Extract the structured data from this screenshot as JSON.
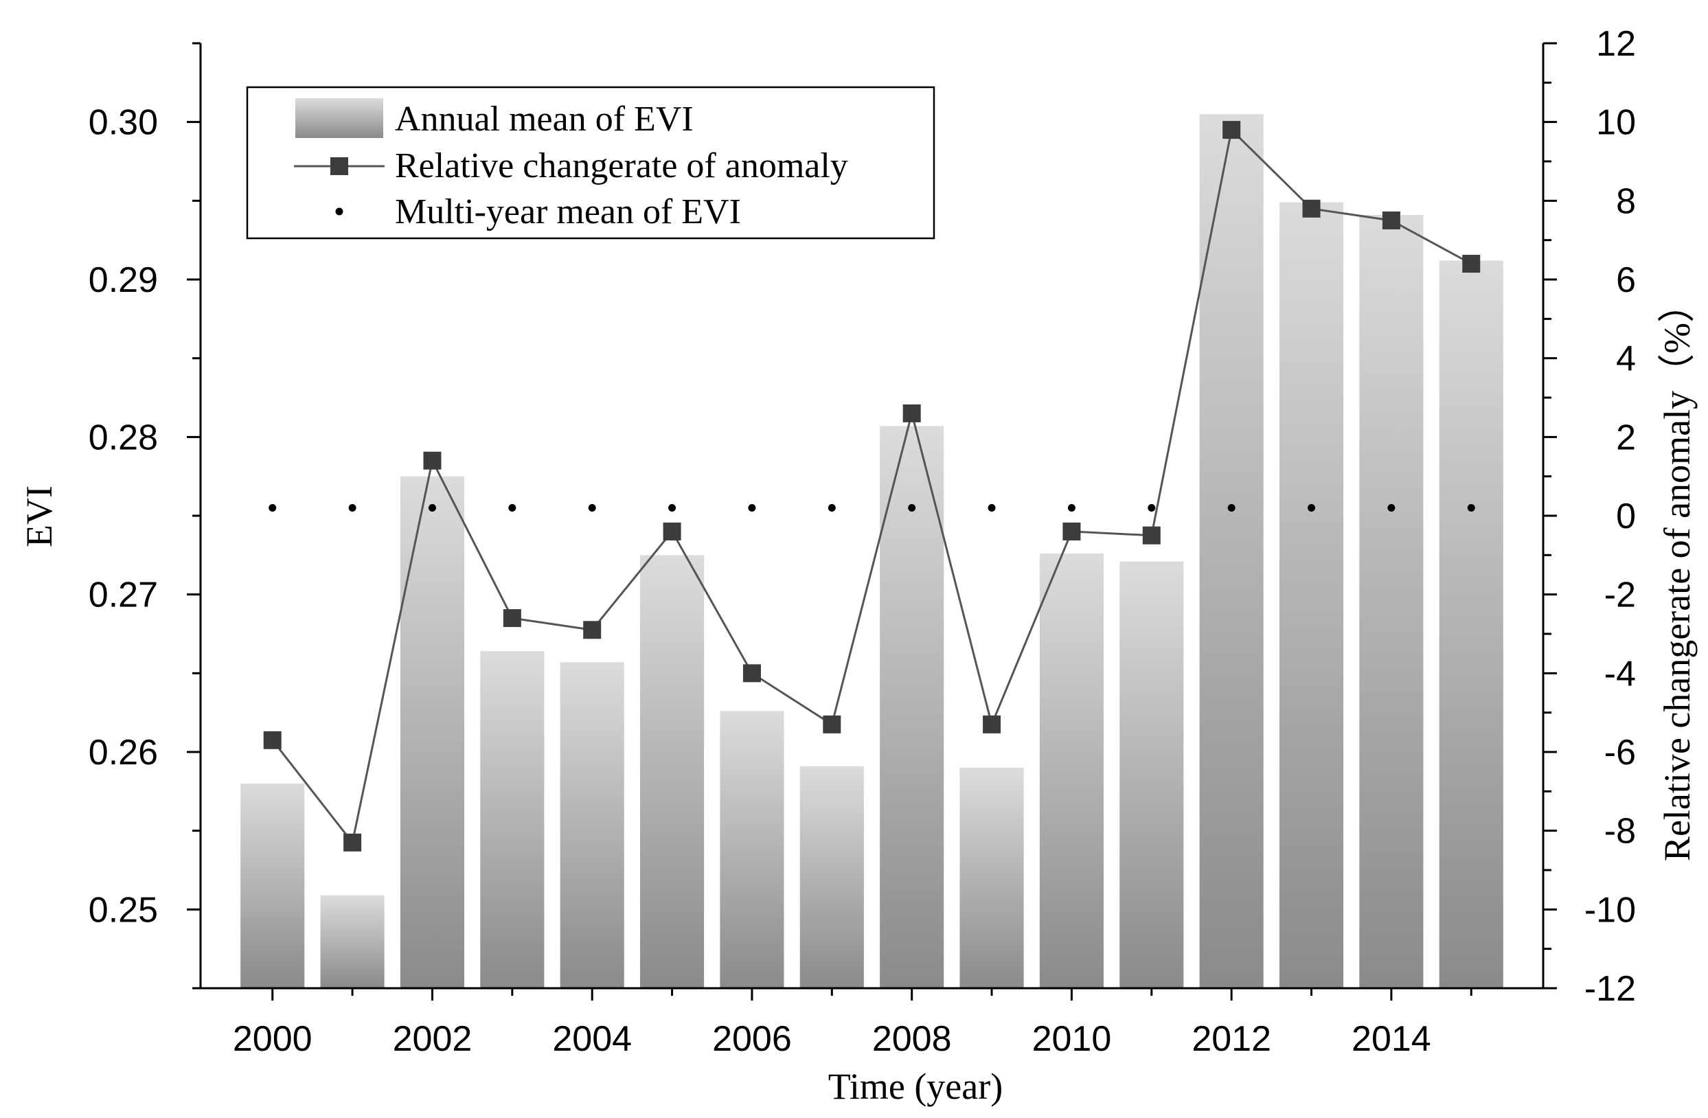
{
  "chart_data": {
    "type": "bar",
    "categories": [
      2000,
      2001,
      2002,
      2003,
      2004,
      2005,
      2006,
      2007,
      2008,
      2009,
      2010,
      2011,
      2012,
      2013,
      2014,
      2015
    ],
    "x_tick_labels": [
      "2000",
      "2002",
      "2004",
      "2006",
      "2008",
      "2010",
      "2012",
      "2014"
    ],
    "series": [
      {
        "name": "Annual mean of EVI",
        "type": "bar",
        "axis": "left",
        "values": [
          0.258,
          0.2509,
          0.2775,
          0.2664,
          0.2657,
          0.2725,
          0.2626,
          0.2591,
          0.2807,
          0.259,
          0.2726,
          0.2721,
          0.3005,
          0.2949,
          0.2941,
          0.2912
        ]
      },
      {
        "name": "Relative changerate of anomaly",
        "type": "line",
        "axis": "right",
        "values": [
          -5.7,
          -8.3,
          1.4,
          -2.6,
          -2.9,
          -0.4,
          -4.0,
          -5.3,
          2.6,
          -5.3,
          -0.4,
          -0.5,
          9.8,
          7.8,
          7.5,
          6.4
        ]
      },
      {
        "name": "Multi-year mean of EVI",
        "type": "scatter",
        "axis": "left",
        "values": [
          0.2755,
          0.2755,
          0.2755,
          0.2755,
          0.2755,
          0.2755,
          0.2755,
          0.2755,
          0.2755,
          0.2755,
          0.2755,
          0.2755,
          0.2755,
          0.2755,
          0.2755,
          0.2755
        ]
      }
    ],
    "xlabel": "Time (year)",
    "ylabel": "EVI",
    "y2label": "Relative changerate of anomaly（%）",
    "ylim": [
      0.245,
      0.305
    ],
    "y2lim": [
      -12,
      12
    ],
    "xlim": [
      1999.1,
      2015.9
    ],
    "y_ticks": [
      0.25,
      0.26,
      0.27,
      0.28,
      0.29,
      0.3
    ],
    "y_tick_labels": [
      "0.25",
      "0.26",
      "0.27",
      "0.28",
      "0.29",
      "0.30"
    ],
    "y2_ticks": [
      -12,
      -10,
      -8,
      -6,
      -4,
      -2,
      0,
      2,
      4,
      6,
      8,
      10,
      12
    ],
    "legend_position": "top-left",
    "grid": false,
    "colors": {
      "bar_top": "#dcdcdc",
      "bar_bottom": "#8a8a8a",
      "line": "#555555",
      "marker": "#3c3c3c",
      "dot": "#000000",
      "axis": "#000000"
    }
  }
}
